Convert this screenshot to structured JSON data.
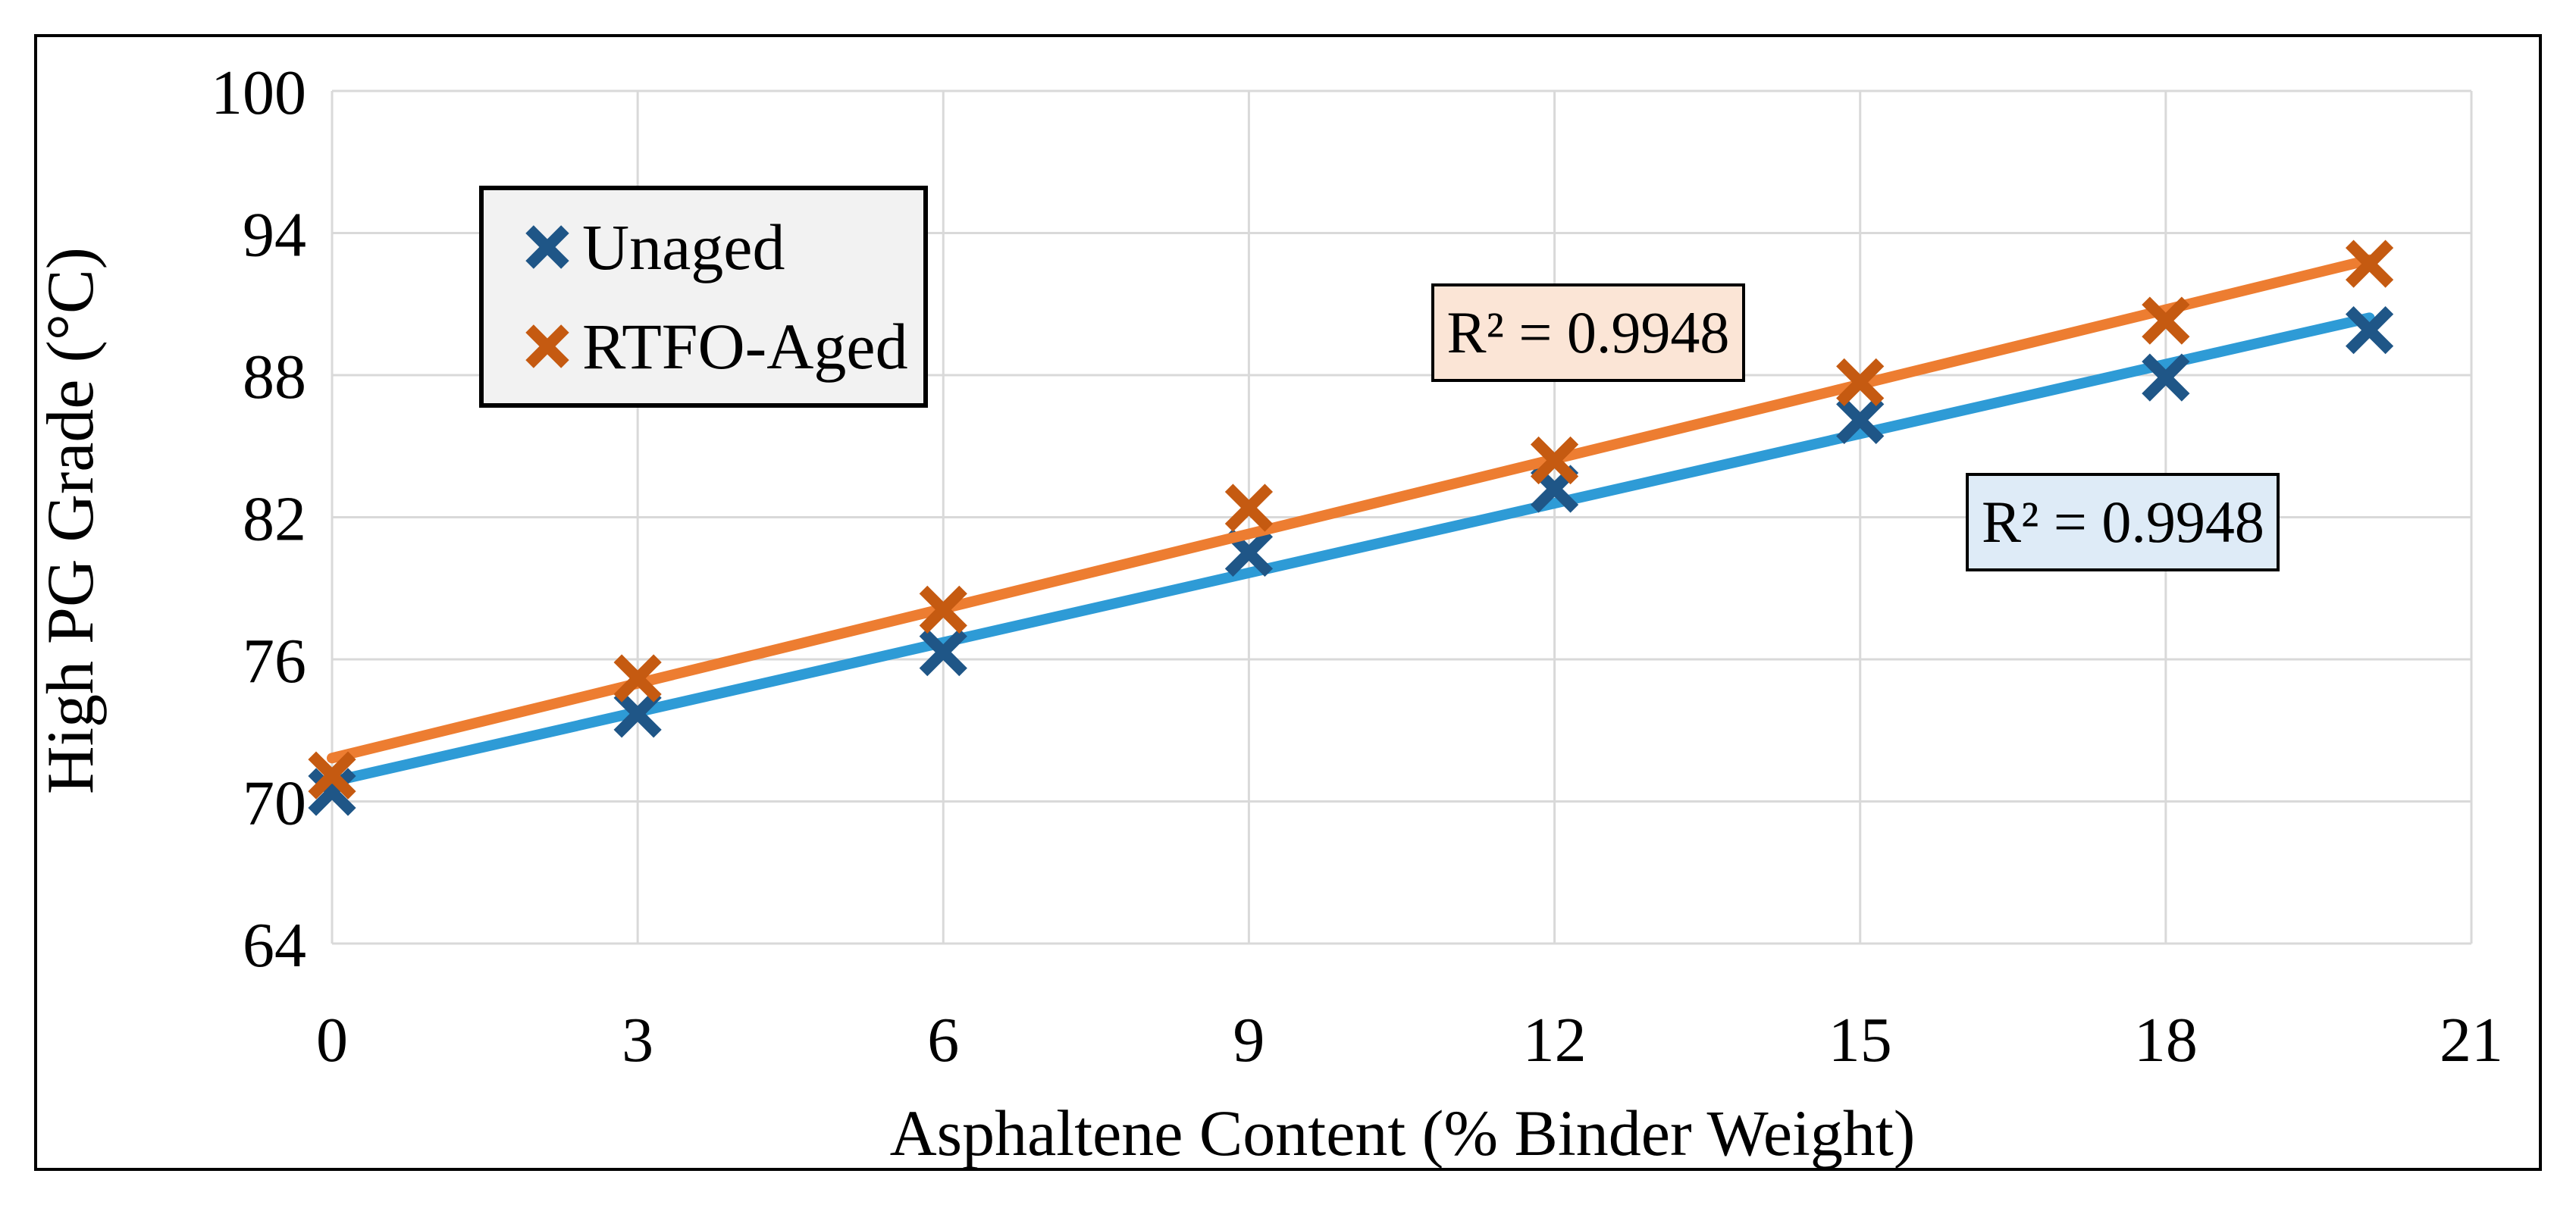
{
  "chart_data": {
    "type": "scatter",
    "title": "",
    "xlabel": "Asphaltene Content (% Binder Weight)",
    "ylabel": "High PG Grade (°C)",
    "x_ticks": [
      "0",
      "3",
      "6",
      "9",
      "12",
      "15",
      "18",
      "21"
    ],
    "y_ticks": [
      "100",
      "94",
      "88",
      "82",
      "76",
      "70",
      "64"
    ],
    "xlim": [
      0,
      21
    ],
    "ylim": [
      64,
      100
    ],
    "grid": true,
    "legend_position": "inside-top-left",
    "x": [
      0,
      3,
      6,
      9,
      12,
      15,
      18,
      20
    ],
    "series": [
      {
        "name": "Unaged",
        "marker": "x",
        "marker_color": "#1F5687",
        "line_color": "#2E9BD6",
        "values": [
          70.4,
          73.7,
          76.3,
          80.5,
          83.2,
          86.1,
          87.9,
          89.9
        ],
        "trendline": {
          "type": "linear",
          "slope": 0.979,
          "intercept": 70.84,
          "r_squared": 0.9948
        }
      },
      {
        "name": "RTFO-Aged",
        "marker": "x",
        "marker_color": "#C55A11",
        "line_color": "#ED7D31",
        "values": [
          71.1,
          75.2,
          78.1,
          82.4,
          84.4,
          87.7,
          90.3,
          92.7
        ],
        "trendline": {
          "type": "linear",
          "slope": 1.052,
          "intercept": 71.83,
          "r_squared": 0.9948
        }
      }
    ],
    "annotations": [
      {
        "text": "R² = 0.9948",
        "bg_color": "#FBE5D6",
        "x": 12.33,
        "y": 89.8,
        "refers_to": "RTFO-Aged"
      },
      {
        "text": "R² = 0.9948",
        "bg_color": "#DEEBF7",
        "x": 17.58,
        "y": 81.8,
        "refers_to": "Unaged"
      }
    ],
    "colors": {
      "gridline": "#D9D9D9",
      "legend_bg": "#F2F2F2",
      "chart_border": "#000000",
      "text": "#000000",
      "background": "#FFFFFF"
    }
  }
}
